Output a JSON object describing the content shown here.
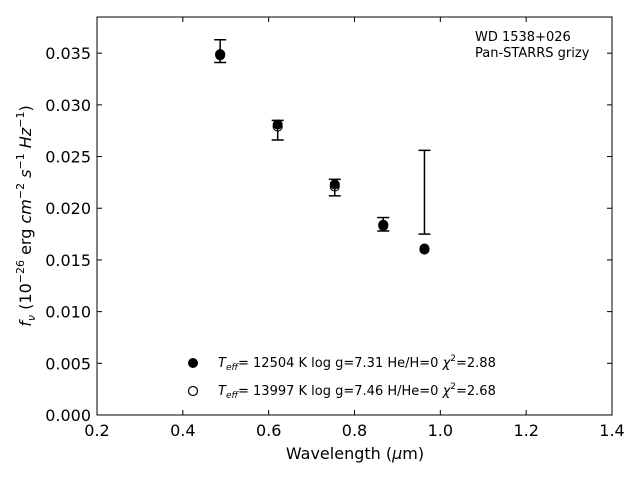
{
  "chart_data": {
    "type": "scatter",
    "xlim": [
      0.2,
      1.4
    ],
    "ylim": [
      0.0,
      0.0385
    ],
    "x_ticks": [
      "0.2",
      "0.4",
      "0.6",
      "0.8",
      "1.0",
      "1.2",
      "1.4"
    ],
    "y_ticks": [
      "0.000",
      "0.005",
      "0.010",
      "0.015",
      "0.020",
      "0.025",
      "0.030",
      "0.035"
    ],
    "xlabel": {
      "main": "Wavelength (",
      "mu": "μ",
      "unit": "m)"
    },
    "ylabel": {
      "f": "f",
      "nu": "ν",
      "open": " (10",
      "exp26": "−26",
      "erg": " erg ",
      "cm": "cm",
      "exp2": "−2",
      "s": " s",
      "exp1a": "−1",
      "hz": " Hz",
      "exp1b": "−1",
      "close": ")"
    },
    "annotation_lines": [
      "WD 1538+026",
      "Pan-STARRS grizy"
    ],
    "observed": {
      "x": [
        0.487,
        0.621,
        0.754,
        0.867,
        0.963
      ],
      "lower": [
        0.0341,
        0.0266,
        0.0212,
        0.0178,
        0.0175
      ],
      "upper": [
        0.0363,
        0.0285,
        0.0228,
        0.0191,
        0.0256
      ]
    },
    "series": [
      {
        "marker": "filled",
        "x": [
          0.487,
          0.621,
          0.754,
          0.867,
          0.963
        ],
        "y": [
          0.0349,
          0.0281,
          0.0223,
          0.0184,
          0.0161
        ]
      },
      {
        "marker": "open",
        "x": [
          0.487,
          0.621,
          0.754,
          0.867,
          0.963
        ],
        "y": [
          0.0348,
          0.0279,
          0.0221,
          0.0183,
          0.016
        ]
      }
    ],
    "legend": [
      {
        "marker": "filled",
        "T": "T",
        "eff": "eff",
        "t_val": "= 12504 K  log g=7.31  He/H=0  ",
        "chi": "χ",
        "chi_exp": "2",
        "chi_val": "=2.88"
      },
      {
        "marker": "open",
        "T": "T",
        "eff": "eff",
        "t_val": "= 13997 K  log g=7.46  H/He=0  ",
        "chi": "χ",
        "chi_exp": "2",
        "chi_val": "=2.68"
      }
    ],
    "colors": {
      "marker": "#000000",
      "axes": "#000000",
      "background": "#ffffff"
    }
  }
}
